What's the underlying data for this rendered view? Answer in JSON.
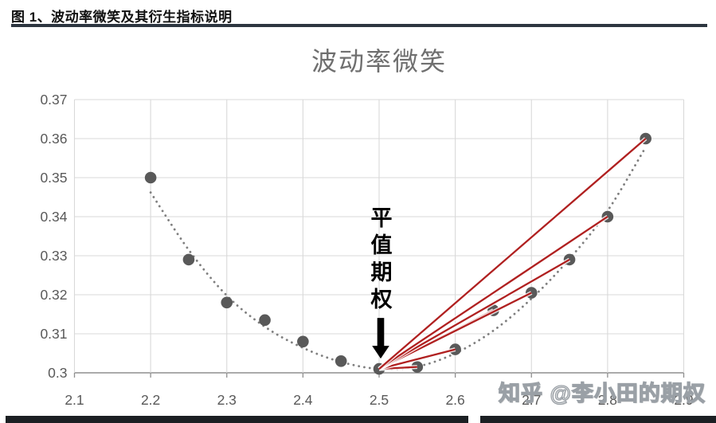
{
  "header": {
    "title": "图 1、波动率微笑及其衍生指标说明"
  },
  "watermark": {
    "text": "知乎 @李小田的期权"
  },
  "chart_data": {
    "type": "scatter",
    "title": "波动率微笑",
    "xlabel": "",
    "ylabel": "",
    "xlim": [
      2.1,
      2.9
    ],
    "ylim": [
      0.3,
      0.37
    ],
    "x_ticks": [
      2.1,
      2.2,
      2.3,
      2.4,
      2.5,
      2.6,
      2.7,
      2.8,
      2.9
    ],
    "y_ticks": [
      0.3,
      0.31,
      0.32,
      0.33,
      0.34,
      0.35,
      0.36,
      0.37
    ],
    "grid": true,
    "legend": "none",
    "points": [
      [
        2.2,
        0.35
      ],
      [
        2.25,
        0.329
      ],
      [
        2.3,
        0.318
      ],
      [
        2.35,
        0.3135
      ],
      [
        2.4,
        0.308
      ],
      [
        2.45,
        0.303
      ],
      [
        2.5,
        0.301
      ],
      [
        2.55,
        0.3015
      ],
      [
        2.6,
        0.306
      ],
      [
        2.65,
        0.316
      ],
      [
        2.7,
        0.3205
      ],
      [
        2.75,
        0.329
      ],
      [
        2.8,
        0.34
      ],
      [
        2.85,
        0.36
      ]
    ],
    "trend_dotted": [
      [
        2.2,
        0.3462
      ],
      [
        2.25,
        0.3315
      ],
      [
        2.3,
        0.3198
      ],
      [
        2.35,
        0.3118
      ],
      [
        2.4,
        0.3064
      ],
      [
        2.45,
        0.3028
      ],
      [
        2.5,
        0.301
      ],
      [
        2.55,
        0.3016
      ],
      [
        2.6,
        0.305
      ],
      [
        2.65,
        0.3108
      ],
      [
        2.7,
        0.319
      ],
      [
        2.75,
        0.3292
      ],
      [
        2.8,
        0.3415
      ],
      [
        2.85,
        0.3578
      ]
    ],
    "atm_annotation": {
      "label": "平值期权",
      "point": [
        2.5,
        0.301
      ]
    },
    "skew_lines": {
      "from": [
        2.5,
        0.301
      ],
      "to": [
        [
          2.55,
          0.3015
        ],
        [
          2.6,
          0.306
        ],
        [
          2.65,
          0.316
        ],
        [
          2.7,
          0.3205
        ],
        [
          2.75,
          0.329
        ],
        [
          2.8,
          0.34
        ],
        [
          2.85,
          0.36
        ]
      ]
    },
    "colors": {
      "point": "#595959",
      "trend": "#7f7f7f",
      "skew_line": "#b02020",
      "grid": "#d9d9d9",
      "axis": "#8f8f8f",
      "tick_label": "#595959",
      "title": "#6f6f6f",
      "annotation": "#000000"
    }
  }
}
